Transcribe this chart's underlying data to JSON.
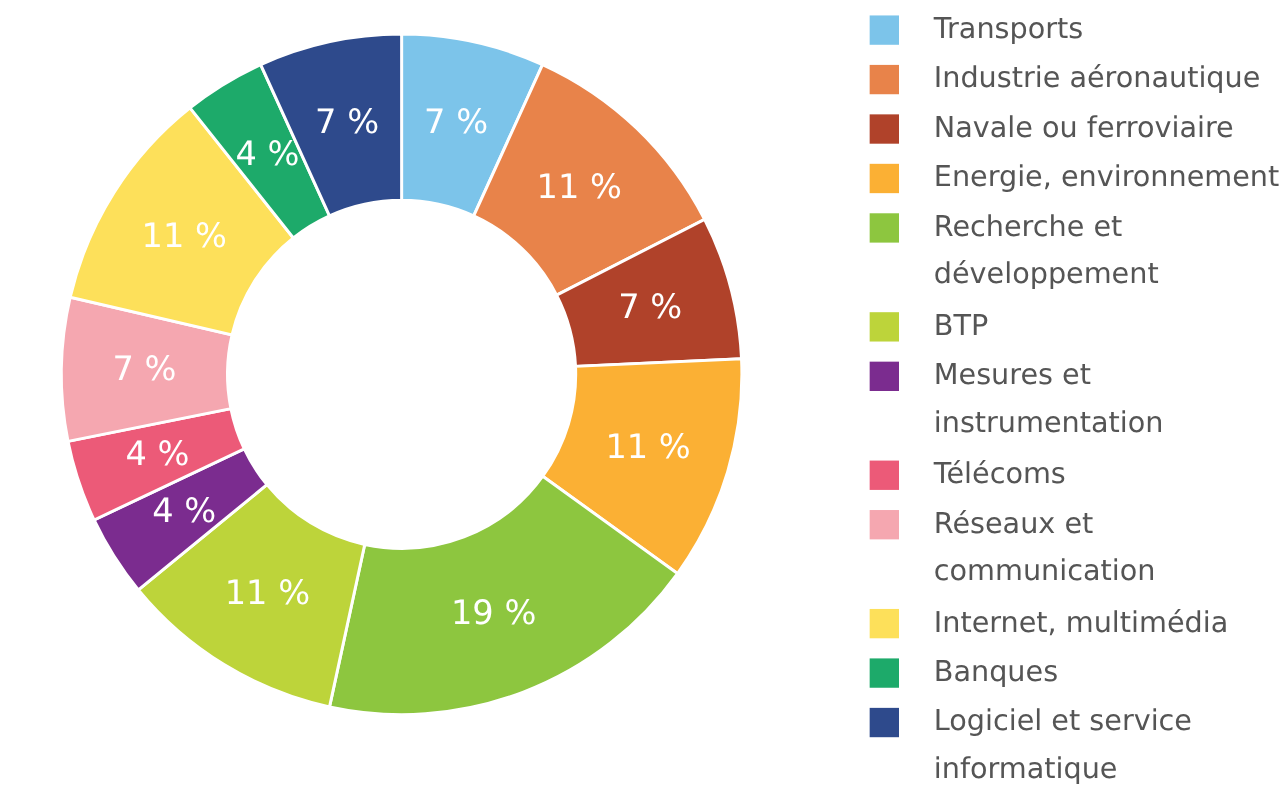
{
  "chart_data": {
    "type": "donut",
    "categories": [
      "Transports",
      "Industrie aéronautique",
      "Navale ou ferroviaire",
      "Energie, environnement",
      "Recherche et développement",
      "BTP",
      "Mesures et instrumentation",
      "Télécoms",
      "Réseaux et communication",
      "Internet, multimédia",
      "Banques",
      "Logiciel et service informatique"
    ],
    "values": [
      7,
      11,
      7,
      11,
      19,
      11,
      4,
      4,
      7,
      11,
      4,
      7
    ],
    "value_labels": [
      "7 %",
      "11 %",
      "7 %",
      "11 %",
      "19 %",
      "11 %",
      "4 %",
      "4 %",
      "7 %",
      "11 %",
      "4 %",
      "7 %"
    ],
    "colors": [
      "#7cc4ea",
      "#e8834a",
      "#b0422a",
      "#fbb034",
      "#8dc63f",
      "#bdd43a",
      "#7b2c8f",
      "#ec5a78",
      "#f5a7b0",
      "#fde05a",
      "#1daa6a",
      "#2e4a8c"
    ],
    "legend": "right"
  }
}
